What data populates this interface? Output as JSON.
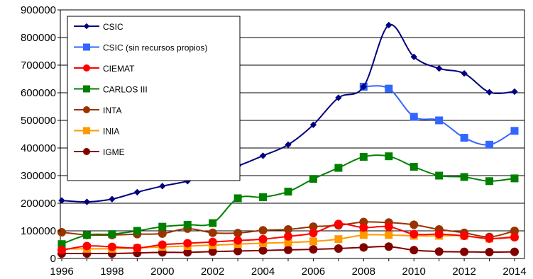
{
  "chart_data": {
    "type": "line",
    "title": "",
    "xlabel": "",
    "ylabel": "",
    "x": [
      1996,
      1997,
      1998,
      1999,
      2000,
      2001,
      2002,
      2003,
      2004,
      2005,
      2006,
      2007,
      2008,
      2009,
      2010,
      2011,
      2012,
      2013,
      2014
    ],
    "xlim": [
      1996,
      2014
    ],
    "ylim": [
      0,
      900000
    ],
    "x_ticks": [
      "1996",
      "1998",
      "2000",
      "2002",
      "2004",
      "2006",
      "2008",
      "2010",
      "2012",
      "2014"
    ],
    "y_ticks": [
      "0",
      "100000",
      "200000",
      "300000",
      "400000",
      "500000",
      "600000",
      "700000",
      "800000",
      "900000"
    ],
    "grid": "horizontal",
    "legend_position": "top-left",
    "series": [
      {
        "name": "CSIC",
        "color": "#000080",
        "marker": "diamond",
        "values": [
          210000,
          205000,
          215000,
          240000,
          262000,
          280000,
          307000,
          335000,
          372000,
          412000,
          484000,
          582000,
          622000,
          845000,
          730000,
          688000,
          670000,
          602000,
          604000
        ]
      },
      {
        "name": "CSIC (sin recursos propios)",
        "color": "#3366FF",
        "marker": "square",
        "values": [
          null,
          null,
          null,
          null,
          null,
          null,
          null,
          null,
          null,
          null,
          null,
          null,
          622000,
          615000,
          513000,
          500000,
          437000,
          412000,
          462000
        ]
      },
      {
        "name": "CIEMAT",
        "color": "#FF0000",
        "marker": "circle",
        "values": [
          30000,
          45000,
          42000,
          38000,
          50000,
          55000,
          60000,
          65000,
          70000,
          80000,
          92000,
          125000,
          112000,
          115000,
          88000,
          88000,
          82000,
          72000,
          77000
        ]
      },
      {
        "name": "CARLOS III",
        "color": "#008000",
        "marker": "square",
        "values": [
          52000,
          85000,
          88000,
          100000,
          115000,
          122000,
          128000,
          218000,
          222000,
          242000,
          288000,
          328000,
          368000,
          370000,
          332000,
          300000,
          295000,
          280000,
          290000
        ]
      },
      {
        "name": "INTA",
        "color": "#993300",
        "marker": "circle",
        "values": [
          95000,
          85000,
          85000,
          88000,
          90000,
          108000,
          93000,
          92000,
          102000,
          105000,
          115000,
          120000,
          132000,
          130000,
          122000,
          105000,
          93000,
          78000,
          100000
        ]
      },
      {
        "name": "INIA",
        "color": "#FF9900",
        "marker": "square",
        "values": [
          35000,
          35000,
          35000,
          38000,
          42000,
          45000,
          48000,
          52000,
          55000,
          58000,
          62000,
          70000,
          85000,
          85000,
          82000,
          82000,
          82000,
          72000,
          80000
        ]
      },
      {
        "name": "IGME",
        "color": "#800000",
        "marker": "circle",
        "values": [
          18000,
          18000,
          18000,
          20000,
          22000,
          22000,
          25000,
          27000,
          29000,
          31000,
          33000,
          36000,
          40000,
          43000,
          30000,
          25000,
          24000,
          23000,
          24000
        ]
      }
    ]
  }
}
